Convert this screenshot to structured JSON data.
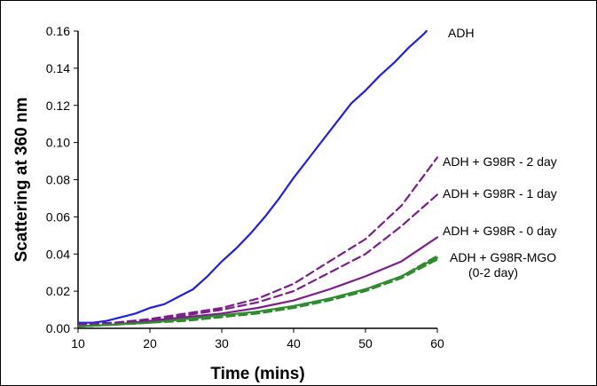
{
  "chart_data": {
    "type": "line",
    "title": "",
    "xlabel": "Time (mins)",
    "ylabel": "Scattering at 360 nm",
    "xlim": [
      10,
      60
    ],
    "ylim": [
      0,
      0.16
    ],
    "x_ticks": [
      "10",
      "20",
      "30",
      "40",
      "50",
      "60"
    ],
    "y_ticks": [
      "0.00",
      "0.02",
      "0.04",
      "0.06",
      "0.08",
      "0.10",
      "0.12",
      "0.14",
      "0.16"
    ],
    "grid": false,
    "legend": "none",
    "annotations": [
      {
        "id": "adh",
        "lines": [
          "ADH"
        ]
      },
      {
        "id": "g98r-2day",
        "lines": [
          "ADH + G98R - 2 day"
        ]
      },
      {
        "id": "g98r-1day",
        "lines": [
          "ADH + G98R - 1 day"
        ]
      },
      {
        "id": "g98r-0day",
        "lines": [
          "ADH + G98R - 0 day"
        ]
      },
      {
        "id": "g98r-mgo",
        "lines": [
          "ADH + G98R-MGO",
          "(0-2 day)"
        ]
      }
    ],
    "series": [
      {
        "color": "#1f1fe6",
        "dash": "solid",
        "x": [
          10,
          12,
          14,
          16,
          18,
          20,
          22,
          24,
          26,
          28,
          30,
          32,
          34,
          36,
          38,
          40,
          42,
          44,
          46,
          48,
          50,
          52,
          54,
          56,
          58,
          58.5
        ],
        "y": [
          0.003,
          0.003,
          0.004,
          0.006,
          0.008,
          0.011,
          0.013,
          0.017,
          0.021,
          0.028,
          0.036,
          0.043,
          0.051,
          0.06,
          0.07,
          0.081,
          0.091,
          0.101,
          0.111,
          0.121,
          0.128,
          0.136,
          0.143,
          0.151,
          0.158,
          0.16
        ]
      },
      {
        "color": "#7b1e8c",
        "dash": "dashed",
        "x": [
          10,
          15,
          20,
          25,
          30,
          35,
          40,
          45,
          50,
          55,
          60
        ],
        "y": [
          0.002,
          0.003,
          0.005,
          0.008,
          0.011,
          0.016,
          0.024,
          0.036,
          0.048,
          0.066,
          0.092
        ]
      },
      {
        "color": "#7b1e8c",
        "dash": "dashed",
        "x": [
          10,
          15,
          20,
          25,
          30,
          35,
          40,
          45,
          50,
          55,
          60
        ],
        "y": [
          0.002,
          0.003,
          0.004,
          0.007,
          0.01,
          0.014,
          0.02,
          0.03,
          0.04,
          0.055,
          0.072
        ]
      },
      {
        "color": "#7b1e8c",
        "dash": "solid",
        "x": [
          10,
          15,
          20,
          25,
          30,
          35,
          40,
          45,
          50,
          55,
          60
        ],
        "y": [
          0.001,
          0.002,
          0.004,
          0.006,
          0.008,
          0.011,
          0.015,
          0.021,
          0.028,
          0.036,
          0.049
        ]
      },
      {
        "color": "#2e8b2e",
        "dash": "solid",
        "x": [
          10,
          15,
          20,
          25,
          30,
          35,
          40,
          45,
          50,
          55,
          60
        ],
        "y": [
          0.001,
          0.002,
          0.003,
          0.005,
          0.007,
          0.009,
          0.012,
          0.016,
          0.021,
          0.028,
          0.038
        ]
      },
      {
        "color": "#2e8b2e",
        "dash": "dashed",
        "x": [
          10,
          15,
          20,
          25,
          30,
          35,
          40,
          45,
          50,
          55,
          60
        ],
        "y": [
          0.001,
          0.002,
          0.003,
          0.005,
          0.006,
          0.009,
          0.012,
          0.016,
          0.021,
          0.028,
          0.039
        ]
      },
      {
        "color": "#2e8b2e",
        "dash": "dashed",
        "x": [
          10,
          15,
          20,
          25,
          30,
          35,
          40,
          45,
          50,
          55,
          60
        ],
        "y": [
          0.001,
          0.002,
          0.003,
          0.004,
          0.006,
          0.008,
          0.011,
          0.015,
          0.02,
          0.027,
          0.037
        ]
      }
    ]
  }
}
